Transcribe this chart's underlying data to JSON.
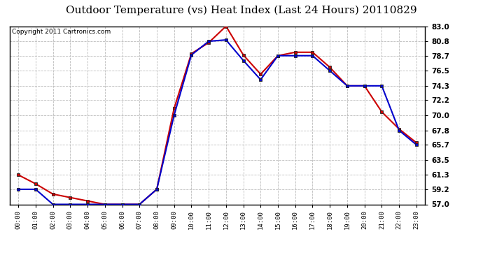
{
  "title": "Outdoor Temperature (vs) Heat Index (Last 24 Hours) 20110829",
  "copyright": "Copyright 2011 Cartronics.com",
  "hours": [
    "00:00",
    "01:00",
    "02:00",
    "03:00",
    "04:00",
    "05:00",
    "06:00",
    "07:00",
    "08:00",
    "09:00",
    "10:00",
    "11:00",
    "12:00",
    "13:00",
    "14:00",
    "15:00",
    "16:00",
    "17:00",
    "18:00",
    "19:00",
    "20:00",
    "21:00",
    "22:00",
    "23:00"
  ],
  "temp": [
    59.2,
    59.2,
    57.0,
    57.0,
    57.0,
    57.0,
    57.0,
    57.0,
    59.2,
    70.0,
    78.8,
    80.8,
    81.0,
    78.0,
    75.2,
    78.7,
    78.7,
    78.7,
    76.5,
    74.3,
    74.3,
    74.3,
    67.8,
    65.7
  ],
  "heat_index": [
    61.3,
    60.0,
    58.5,
    58.0,
    57.5,
    57.0,
    57.0,
    57.0,
    59.2,
    71.0,
    79.0,
    80.6,
    83.0,
    78.8,
    76.0,
    78.7,
    79.2,
    79.2,
    77.0,
    74.3,
    74.3,
    70.5,
    68.0,
    66.0
  ],
  "temp_color": "#0000cc",
  "heat_color": "#cc0000",
  "ylim_min": 57.0,
  "ylim_max": 83.0,
  "yticks": [
    57.0,
    59.2,
    61.3,
    63.5,
    65.7,
    67.8,
    70.0,
    72.2,
    74.3,
    76.5,
    78.7,
    80.8,
    83.0
  ],
  "bg_color": "#ffffff",
  "plot_bg": "#ffffff",
  "grid_color": "#bbbbbb",
  "title_fontsize": 11,
  "copyright_fontsize": 6.5,
  "tick_fontsize": 6.5,
  "ytick_fontsize": 7.5
}
